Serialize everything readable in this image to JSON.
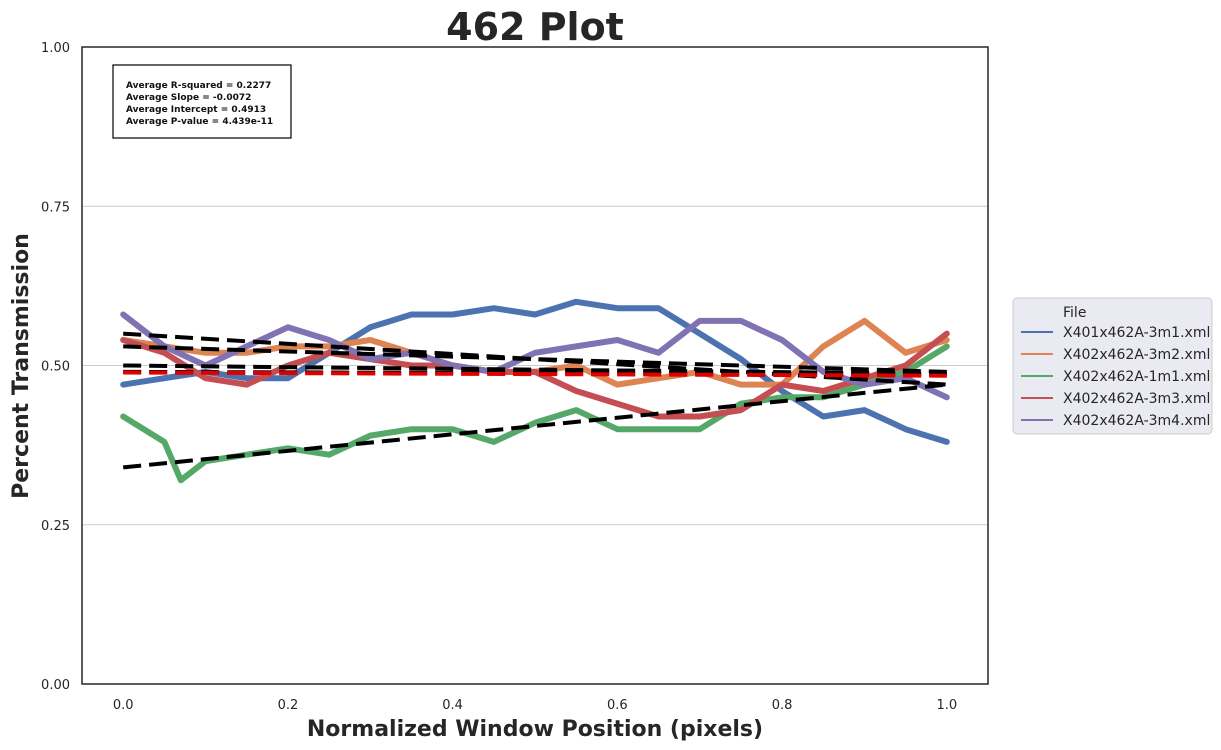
{
  "chart_data": {
    "type": "line",
    "title": "462 Plot",
    "xlabel": "Normalized Window Position (pixels)",
    "ylabel": "Percent Transmission",
    "xlim": [
      -0.05,
      1.05
    ],
    "ylim": [
      0.0,
      1.0
    ],
    "x_ticks": [
      "0.0",
      "0.2",
      "0.4",
      "0.6",
      "0.8",
      "1.0"
    ],
    "y_ticks": [
      "0.00",
      "0.25",
      "0.50",
      "0.75",
      "1.00"
    ],
    "grid": "horizontal",
    "legend": {
      "title": "File",
      "placement": "right-outside"
    },
    "stats_box": [
      "Average R-squared = 0.2277",
      "Average Slope = -0.0072",
      "Average Intercept = 0.4913",
      "Average P-value = 4.439e-11"
    ],
    "series": [
      {
        "name": "X401x462A-3m1.xml",
        "color": "#4c72b0",
        "x": [
          0.0,
          0.05,
          0.1,
          0.15,
          0.2,
          0.25,
          0.3,
          0.35,
          0.4,
          0.45,
          0.5,
          0.55,
          0.6,
          0.65,
          0.7,
          0.75,
          0.8,
          0.85,
          0.9,
          0.95,
          1.0
        ],
        "y": [
          0.47,
          0.48,
          0.49,
          0.48,
          0.48,
          0.52,
          0.56,
          0.58,
          0.58,
          0.59,
          0.58,
          0.6,
          0.59,
          0.59,
          0.55,
          0.51,
          0.46,
          0.42,
          0.43,
          0.4,
          0.38
        ],
        "fit": [
          0.5,
          0.495,
          0.49,
          0.487
        ]
      },
      {
        "name": "X402x462A-3m2.xml",
        "color": "#dd8452",
        "x": [
          0.0,
          0.05,
          0.1,
          0.15,
          0.2,
          0.25,
          0.3,
          0.35,
          0.4,
          0.45,
          0.5,
          0.55,
          0.6,
          0.65,
          0.7,
          0.75,
          0.8,
          0.85,
          0.9,
          0.95,
          1.0
        ],
        "y": [
          0.54,
          0.53,
          0.52,
          0.52,
          0.53,
          0.53,
          0.54,
          0.52,
          0.5,
          0.49,
          0.49,
          0.5,
          0.47,
          0.48,
          0.49,
          0.47,
          0.47,
          0.53,
          0.57,
          0.52,
          0.54
        ],
        "fit": [
          0.53,
          0.51,
          0.49
        ]
      },
      {
        "name": "X402x462A-1m1.xml",
        "color": "#55a868",
        "x": [
          0.0,
          0.05,
          0.07,
          0.1,
          0.15,
          0.2,
          0.25,
          0.3,
          0.35,
          0.4,
          0.45,
          0.5,
          0.55,
          0.6,
          0.65,
          0.7,
          0.75,
          0.8,
          0.85,
          0.9,
          0.95,
          1.0
        ],
        "y": [
          0.42,
          0.38,
          0.32,
          0.35,
          0.36,
          0.37,
          0.36,
          0.39,
          0.4,
          0.4,
          0.38,
          0.41,
          0.43,
          0.4,
          0.4,
          0.4,
          0.44,
          0.45,
          0.45,
          0.47,
          0.49,
          0.53
        ],
        "fit": [
          0.34,
          0.47
        ]
      },
      {
        "name": "X402x462A-3m3.xml",
        "color": "#c44e52",
        "x": [
          0.0,
          0.05,
          0.1,
          0.15,
          0.2,
          0.25,
          0.3,
          0.35,
          0.4,
          0.45,
          0.5,
          0.55,
          0.6,
          0.65,
          0.7,
          0.75,
          0.8,
          0.85,
          0.9,
          0.95,
          1.0
        ],
        "y": [
          0.54,
          0.52,
          0.48,
          0.47,
          0.5,
          0.52,
          0.51,
          0.5,
          0.5,
          0.49,
          0.49,
          0.46,
          0.44,
          0.42,
          0.42,
          0.43,
          0.47,
          0.46,
          0.48,
          0.5,
          0.55
        ],
        "fit": [
          0.49,
          0.486
        ]
      },
      {
        "name": "X402x462A-3m4.xml",
        "color": "#8172b3",
        "x": [
          0.0,
          0.05,
          0.1,
          0.15,
          0.2,
          0.25,
          0.3,
          0.35,
          0.4,
          0.45,
          0.5,
          0.55,
          0.6,
          0.65,
          0.7,
          0.75,
          0.8,
          0.85,
          0.9,
          0.95,
          1.0
        ],
        "y": [
          0.58,
          0.53,
          0.5,
          0.53,
          0.56,
          0.54,
          0.51,
          0.52,
          0.5,
          0.49,
          0.52,
          0.53,
          0.54,
          0.52,
          0.57,
          0.57,
          0.54,
          0.49,
          0.47,
          0.48,
          0.45
        ],
        "fit": [
          0.55,
          0.47
        ]
      }
    ]
  }
}
